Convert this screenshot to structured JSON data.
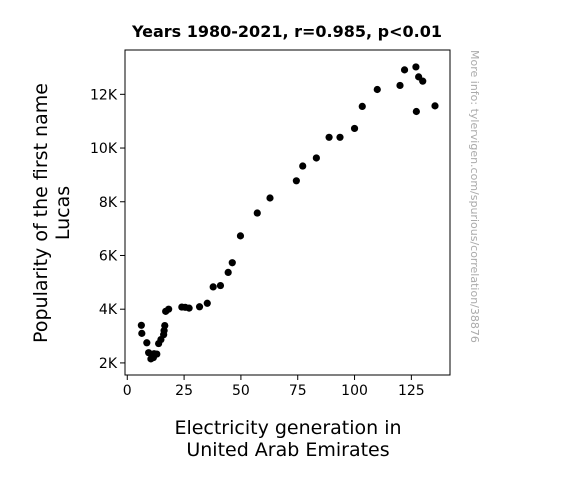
{
  "chart_data": {
    "type": "scatter",
    "title": "Years 1980-2021, r=0.985, p<0.01",
    "xlabel_lines": [
      "Electricity generation in",
      "United Arab Emirates"
    ],
    "ylabel_lines": [
      "Popularity of the first name",
      "Lucas"
    ],
    "watermark": "More info: tylervigen.com/spurious/correlation/38876",
    "xlim": [
      -1,
      142
    ],
    "ylim": [
      1550,
      13650
    ],
    "xticks": [
      0,
      25,
      50,
      75,
      100,
      125
    ],
    "xtick_labels": [
      "0",
      "25",
      "50",
      "75",
      "100",
      "125"
    ],
    "yticks": [
      2000,
      4000,
      6000,
      8000,
      10000,
      12000
    ],
    "ytick_labels": [
      "2K",
      "4K",
      "6K",
      "8K",
      "10K",
      "12K"
    ],
    "point_color": "#000000",
    "points": [
      {
        "x": 6.2,
        "y": 3400
      },
      {
        "x": 6.4,
        "y": 3100
      },
      {
        "x": 8.6,
        "y": 2750
      },
      {
        "x": 9.4,
        "y": 2380
      },
      {
        "x": 10.4,
        "y": 2150
      },
      {
        "x": 11.5,
        "y": 2200
      },
      {
        "x": 11.8,
        "y": 2340
      },
      {
        "x": 13.0,
        "y": 2330
      },
      {
        "x": 13.8,
        "y": 2720
      },
      {
        "x": 14.8,
        "y": 2870
      },
      {
        "x": 16.0,
        "y": 3050
      },
      {
        "x": 16.2,
        "y": 3200
      },
      {
        "x": 16.5,
        "y": 3390
      },
      {
        "x": 16.9,
        "y": 3920
      },
      {
        "x": 18.2,
        "y": 4000
      },
      {
        "x": 24.0,
        "y": 4080
      },
      {
        "x": 25.5,
        "y": 4070
      },
      {
        "x": 27.2,
        "y": 4040
      },
      {
        "x": 31.8,
        "y": 4090
      },
      {
        "x": 35.2,
        "y": 4220
      },
      {
        "x": 37.8,
        "y": 4830
      },
      {
        "x": 41.0,
        "y": 4880
      },
      {
        "x": 44.4,
        "y": 5370
      },
      {
        "x": 46.2,
        "y": 5730
      },
      {
        "x": 49.8,
        "y": 6730
      },
      {
        "x": 57.2,
        "y": 7580
      },
      {
        "x": 62.8,
        "y": 8140
      },
      {
        "x": 74.4,
        "y": 8780
      },
      {
        "x": 77.2,
        "y": 9330
      },
      {
        "x": 83.2,
        "y": 9630
      },
      {
        "x": 88.8,
        "y": 10400
      },
      {
        "x": 93.6,
        "y": 10400
      },
      {
        "x": 100.0,
        "y": 10730
      },
      {
        "x": 103.4,
        "y": 11550
      },
      {
        "x": 110.0,
        "y": 12180
      },
      {
        "x": 120.0,
        "y": 12330
      },
      {
        "x": 122.0,
        "y": 12910
      },
      {
        "x": 127.0,
        "y": 13020
      },
      {
        "x": 128.2,
        "y": 12650
      },
      {
        "x": 130.0,
        "y": 12490
      },
      {
        "x": 127.2,
        "y": 11360
      },
      {
        "x": 135.4,
        "y": 11570
      }
    ]
  }
}
